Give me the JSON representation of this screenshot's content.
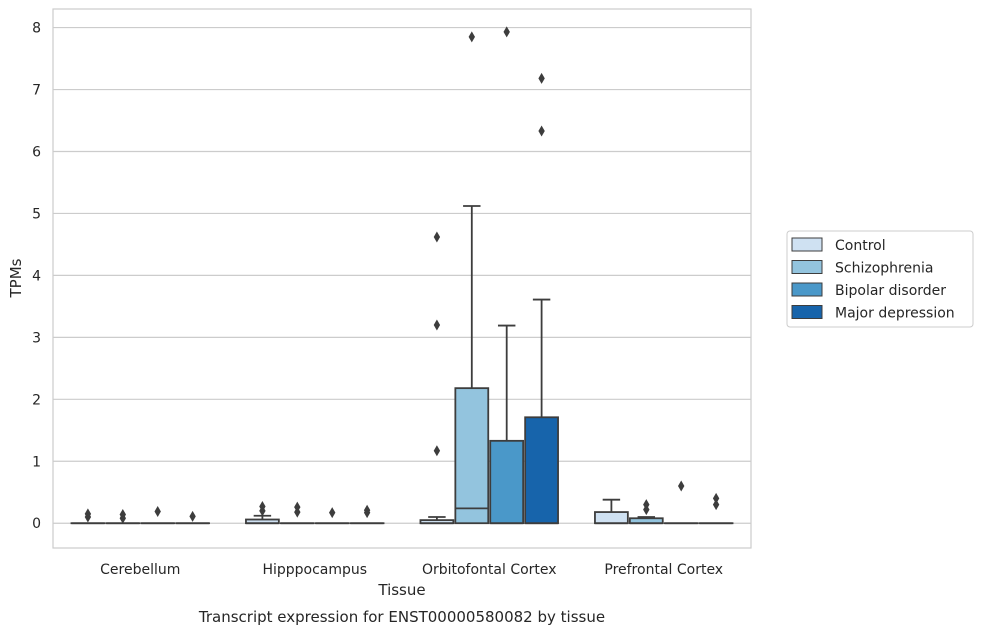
{
  "chart_data": {
    "type": "box",
    "title": "",
    "caption": "Transcript expression for ENST00000580082 by tissue",
    "xlabel": "Tissue",
    "ylabel": "TPMs",
    "ylim": [
      -0.4,
      8.3
    ],
    "yticks": [
      0,
      1,
      2,
      3,
      4,
      5,
      6,
      7,
      8
    ],
    "grid": "horizontal",
    "legend_position": "right",
    "categories": [
      "Cerebellum",
      "Hipppocampus",
      "Orbitofontal Cortex",
      "Prefrontal Cortex"
    ],
    "series": [
      {
        "name": "Control",
        "color": "#cfe1f2",
        "boxes": [
          {
            "q1": 0,
            "median": 0,
            "q3": 0,
            "whisker_low": 0,
            "whisker_high": 0,
            "outliers": [
              0.1,
              0.15
            ]
          },
          {
            "q1": 0,
            "median": 0,
            "q3": 0.06,
            "whisker_low": 0,
            "whisker_high": 0.12,
            "outliers": [
              0.2,
              0.27
            ]
          },
          {
            "q1": 0,
            "median": 0,
            "q3": 0.05,
            "whisker_low": 0,
            "whisker_high": 0.1,
            "outliers": [
              1.17,
              3.2,
              4.62
            ]
          },
          {
            "q1": 0,
            "median": 0,
            "q3": 0.18,
            "whisker_low": 0,
            "whisker_high": 0.38,
            "outliers": []
          }
        ]
      },
      {
        "name": "Schizophrenia",
        "color": "#93c4de",
        "boxes": [
          {
            "q1": 0,
            "median": 0,
            "q3": 0,
            "whisker_low": 0,
            "whisker_high": 0,
            "outliers": [
              0.08,
              0.14
            ]
          },
          {
            "q1": 0,
            "median": 0,
            "q3": 0,
            "whisker_low": 0,
            "whisker_high": 0,
            "outliers": [
              0.18,
              0.26
            ]
          },
          {
            "q1": 0,
            "median": 0.24,
            "q3": 2.18,
            "whisker_low": 0,
            "whisker_high": 5.12,
            "outliers": [
              7.85
            ]
          },
          {
            "q1": 0,
            "median": 0,
            "q3": 0.08,
            "whisker_low": 0,
            "whisker_high": 0.1,
            "outliers": [
              0.22,
              0.3
            ]
          }
        ]
      },
      {
        "name": "Bipolar disorder",
        "color": "#4a98c9",
        "boxes": [
          {
            "q1": 0,
            "median": 0,
            "q3": 0,
            "whisker_low": 0,
            "whisker_high": 0,
            "outliers": [
              0.19
            ]
          },
          {
            "q1": 0,
            "median": 0,
            "q3": 0,
            "whisker_low": 0,
            "whisker_high": 0,
            "outliers": [
              0.17
            ]
          },
          {
            "q1": 0,
            "median": 0,
            "q3": 1.33,
            "whisker_low": 0,
            "whisker_high": 3.19,
            "outliers": [
              7.93
            ]
          },
          {
            "q1": 0,
            "median": 0,
            "q3": 0,
            "whisker_low": 0,
            "whisker_high": 0,
            "outliers": [
              0.6
            ]
          }
        ]
      },
      {
        "name": "Major depression",
        "color": "#1764ab",
        "boxes": [
          {
            "q1": 0,
            "median": 0,
            "q3": 0,
            "whisker_low": 0,
            "whisker_high": 0,
            "outliers": [
              0.11
            ]
          },
          {
            "q1": 0,
            "median": 0,
            "q3": 0,
            "whisker_low": 0,
            "whisker_high": 0,
            "outliers": [
              0.17,
              0.21
            ]
          },
          {
            "q1": 0,
            "median": 0,
            "q3": 1.71,
            "whisker_low": 0,
            "whisker_high": 3.61,
            "outliers": [
              6.33,
              7.18
            ]
          },
          {
            "q1": 0,
            "median": 0,
            "q3": 0,
            "whisker_low": 0,
            "whisker_high": 0,
            "outliers": [
              0.3,
              0.4
            ]
          }
        ]
      }
    ]
  }
}
